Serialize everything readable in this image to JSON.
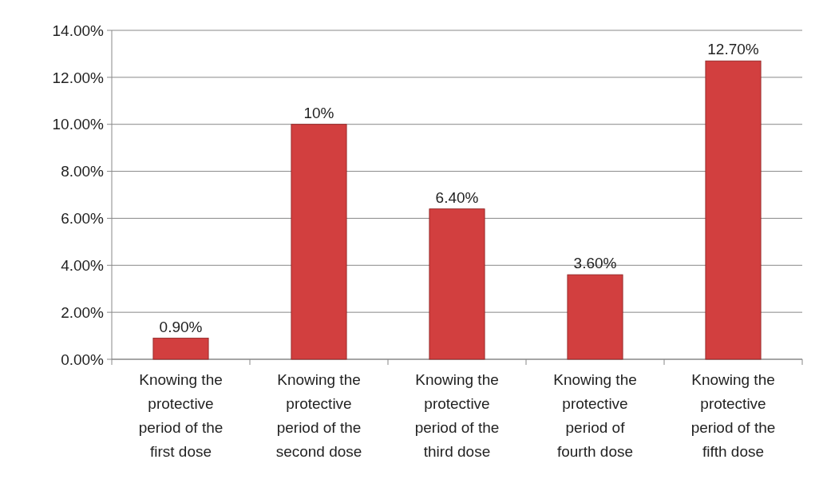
{
  "chart_data": {
    "type": "bar",
    "categories": [
      "Knowing the protective period of the first dose",
      "Knowing the protective period of the second dose",
      "Knowing the protective period of the third dose",
      "Knowing the protective period of fourth dose",
      "Knowing the protective period of the fifth dose"
    ],
    "values": [
      0.9,
      10,
      6.4,
      3.6,
      12.7
    ],
    "value_labels": [
      "0.90%",
      "10%",
      "6.40%",
      "3.60%",
      "12.70%"
    ],
    "color": "#d23f3f",
    "ylim": [
      0,
      14
    ],
    "yticks": [
      {
        "value": 0,
        "label": "0.00%"
      },
      {
        "value": 2,
        "label": "2.00%"
      },
      {
        "value": 4,
        "label": "4.00%"
      },
      {
        "value": 6,
        "label": "6.00%"
      },
      {
        "value": 8,
        "label": "8.00%"
      },
      {
        "value": 10,
        "label": "10.00%"
      },
      {
        "value": 12,
        "label": "12.00%"
      },
      {
        "value": 14,
        "label": "14.00%"
      }
    ],
    "grid": "y"
  }
}
